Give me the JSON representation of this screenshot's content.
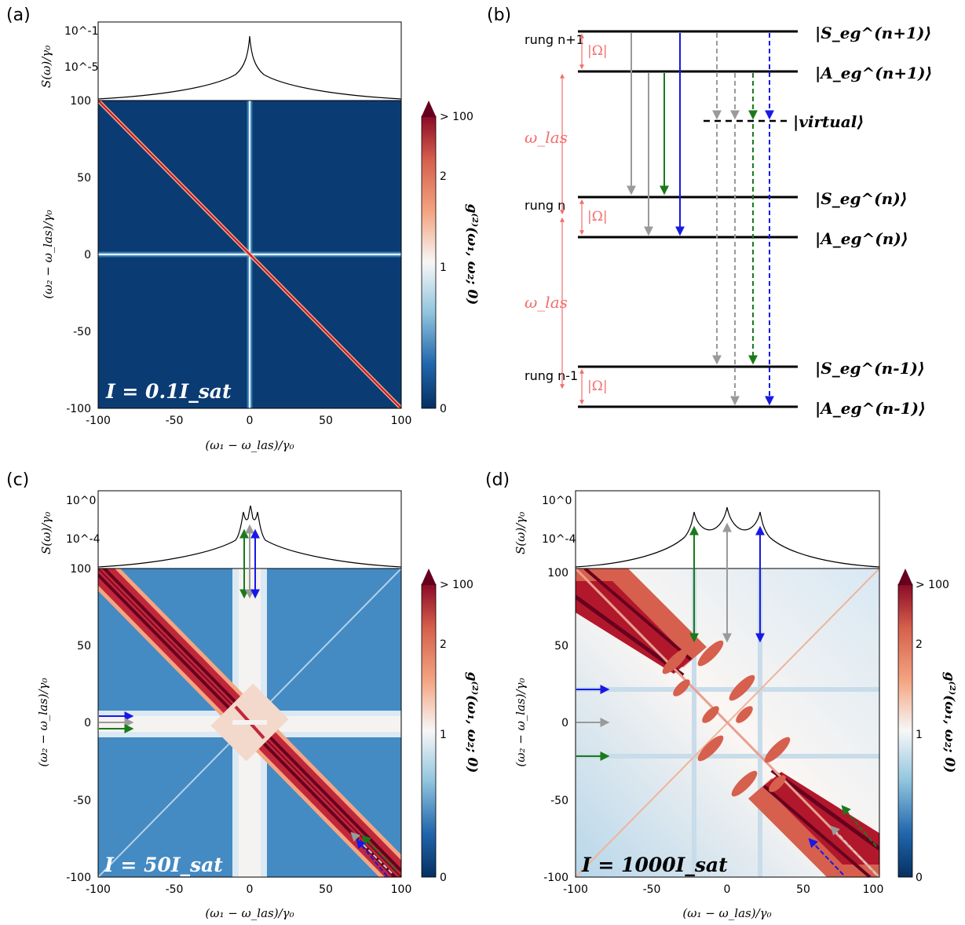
{
  "panels": {
    "a": {
      "label": "(a)",
      "intensity_label": "I = 0.1I_sat",
      "spectrum_ylabel": "S(ω)/γ₀",
      "spectrum_ticks": [
        "10^-1",
        "10^-5"
      ],
      "xlabel": "(ω₁ − ω_las)/γ₀",
      "ylabel": "(ω₂ − ω_las)/γ₀",
      "x_ticks": [
        "-100",
        "-50",
        "0",
        "50",
        "100"
      ],
      "y_ticks": [
        "100",
        "50",
        "0",
        "-50",
        "-100"
      ],
      "colorbar_label": "g⁽²⁾(ω₁, ω₂; 0)",
      "colorbar_ticks": [
        "> 100",
        "2",
        "1",
        "0"
      ]
    },
    "b": {
      "label": "(b)",
      "states": [
        "|S_eg^(n+1)⟩",
        "|A_eg^(n+1)⟩",
        "|virtual⟩",
        "|S_eg^(n)⟩",
        "|A_eg^(n)⟩",
        "|S_eg^(n-1)⟩",
        "|A_eg^(n-1)⟩"
      ],
      "rungs": [
        "rung n+1",
        "rung n",
        "rung n-1"
      ],
      "omega_las": "ω_las",
      "rabi": "|Ω|"
    },
    "c": {
      "label": "(c)",
      "intensity_label": "I = 50I_sat",
      "spectrum_ylabel": "S(ω)/γ₀",
      "spectrum_ticks": [
        "10^0",
        "10^-4"
      ],
      "xlabel": "(ω₁ − ω_las)/γ₀",
      "ylabel": "(ω₂ − ω_las)/γ₀",
      "x_ticks": [
        "-100",
        "-50",
        "0",
        "50",
        "100"
      ],
      "y_ticks": [
        "100",
        "50",
        "0",
        "-50",
        "-100"
      ],
      "colorbar_label": "g⁽²⁾(ω₁, ω₂; 0)",
      "colorbar_ticks": [
        "> 100",
        "2",
        "1",
        "0"
      ]
    },
    "d": {
      "label": "(d)",
      "intensity_label": "I = 1000I_sat",
      "spectrum_ylabel": "S(ω)/γ₀",
      "spectrum_ticks": [
        "10^0",
        "10^-4"
      ],
      "xlabel": "(ω₁ − ω_las)/γ₀",
      "ylabel": "(ω₂ − ω_las)/γ₀",
      "x_ticks": [
        "-100",
        "-50",
        "0",
        "50",
        "100"
      ],
      "y_ticks": [
        "100",
        "50",
        "0",
        "-50",
        "-100"
      ],
      "colorbar_label": "g⁽²⁾(ω₁, ω₂; 0)",
      "colorbar_ticks": [
        "> 100",
        "2",
        "1",
        "0"
      ]
    }
  },
  "colors": {
    "green": "#1a7a1a",
    "gray": "#9a9a9a",
    "blue": "#1818e6",
    "pink": "#f26d6d",
    "deep_blue": "#0b3b73",
    "deep_red": "#67001f"
  },
  "chart_data": [
    {
      "panel": "a",
      "type": "heatmap",
      "title": "I = 0.1I_sat",
      "xlabel": "(ω₁ − ω_las)/γ₀",
      "ylabel": "(ω₂ − ω_las)/γ₀",
      "xlim": [
        -100,
        100
      ],
      "ylim": [
        -100,
        100
      ],
      "colorbar": {
        "label": "g⁽²⁾(ω₁, ω₂; 0)",
        "range": [
          0,
          100
        ],
        "ticks": [
          "0",
          "1",
          "2",
          "> 100"
        ]
      },
      "spectrum": {
        "ylabel": "S(ω)/γ₀",
        "scale": "log",
        "peaks_at": [
          0
        ]
      },
      "features": [
        "anti-diagonal bunching line ω₁ = −ω₂",
        "lines at ω₁ = 0 and ω₂ = 0"
      ]
    },
    {
      "panel": "c",
      "type": "heatmap",
      "title": "I = 50I_sat",
      "xlabel": "(ω₁ − ω_las)/γ₀",
      "ylabel": "(ω₂ − ω_las)/γ₀",
      "xlim": [
        -100,
        100
      ],
      "ylim": [
        -100,
        100
      ],
      "colorbar": {
        "label": "g⁽²⁾(ω₁, ω₂; 0)",
        "range": [
          0,
          100
        ],
        "ticks": [
          "0",
          "1",
          "2",
          "> 100"
        ]
      },
      "spectrum": {
        "ylabel": "S(ω)/γ₀",
        "scale": "log",
        "peaks_at": [
          -4,
          0,
          4
        ]
      },
      "arrow_frequencies": {
        "green": -4,
        "gray": 0,
        "blue": 4
      }
    },
    {
      "panel": "d",
      "type": "heatmap",
      "title": "I = 1000I_sat",
      "xlabel": "(ω₁ − ω_las)/γ₀",
      "ylabel": "(ω₂ − ω_las)/γ₀",
      "xlim": [
        -100,
        100
      ],
      "ylim": [
        -100,
        100
      ],
      "colorbar": {
        "label": "g⁽²⁾(ω₁, ω₂; 0)",
        "range": [
          0,
          100
        ],
        "ticks": [
          "0",
          "1",
          "2",
          "> 100"
        ]
      },
      "spectrum": {
        "ylabel": "S(ω)/γ₀",
        "scale": "log",
        "peaks_at": [
          -22,
          0,
          22
        ]
      },
      "arrow_frequencies": {
        "green": -22,
        "gray": 0,
        "blue": 22
      }
    }
  ]
}
